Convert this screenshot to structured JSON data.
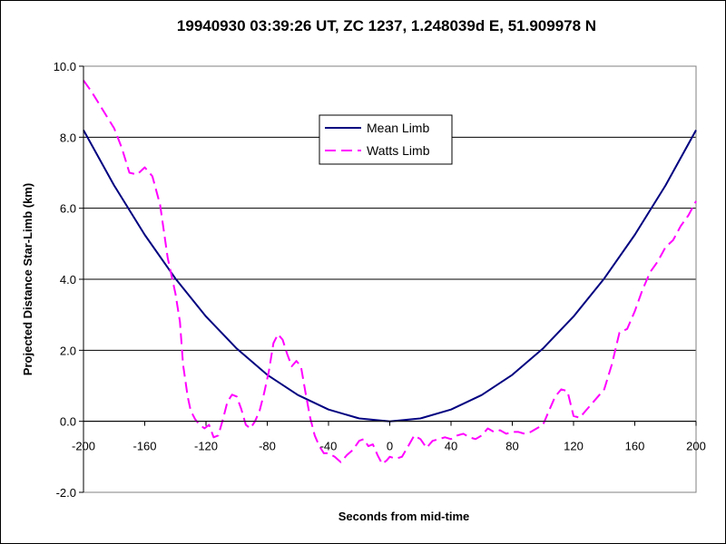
{
  "chart_data": {
    "type": "line",
    "title": "19940930 03:39:26 UT, ZC 1237, 1.248039d E, 51.909978 N",
    "xlabel": "Seconds from mid-time",
    "ylabel": "Projected Distance Star-Limb (km)",
    "xlim": [
      -200,
      200
    ],
    "ylim": [
      -2.0,
      10.0
    ],
    "x_ticks": [
      -200,
      -160,
      -120,
      -80,
      -40,
      0,
      40,
      80,
      120,
      160,
      200
    ],
    "x_tick_labels": [
      "-200",
      "-160",
      "-120",
      "-80",
      "-40",
      "0",
      "40",
      "80",
      "120",
      "160",
      "200"
    ],
    "y_ticks": [
      -2,
      0,
      2,
      4,
      6,
      8,
      10
    ],
    "y_tick_labels": [
      "-2.0",
      "0.0",
      "2.0",
      "4.0",
      "6.0",
      "8.0",
      "10.0"
    ],
    "grid": "horizontal",
    "legend_position": "top-center",
    "series": [
      {
        "name": "Mean Limb",
        "color": "#000080",
        "dash": "solid",
        "x": [
          -200,
          -180,
          -160,
          -140,
          -120,
          -100,
          -80,
          -60,
          -40,
          -20,
          0,
          20,
          40,
          60,
          80,
          100,
          120,
          140,
          160,
          180,
          200
        ],
        "y": [
          8.2,
          6.64,
          5.25,
          4.02,
          2.95,
          2.05,
          1.31,
          0.74,
          0.33,
          0.08,
          0.0,
          0.08,
          0.33,
          0.74,
          1.31,
          2.05,
          2.95,
          4.02,
          5.25,
          6.64,
          8.2
        ]
      },
      {
        "name": "Watts Limb",
        "color": "#ff00ff",
        "dash": "dashed",
        "x": [
          -200,
          -195,
          -190,
          -185,
          -180,
          -175,
          -170,
          -165,
          -160,
          -155,
          -150,
          -145,
          -140,
          -137,
          -135,
          -132,
          -130,
          -127,
          -124,
          -121,
          -118,
          -115,
          -112,
          -109,
          -106,
          -103,
          -100,
          -97,
          -94,
          -91,
          -88,
          -85,
          -82,
          -79,
          -76,
          -73,
          -70,
          -67,
          -64,
          -61,
          -58,
          -55,
          -52,
          -49,
          -46,
          -43,
          -40,
          -36,
          -32,
          -28,
          -24,
          -20,
          -17,
          -14,
          -11,
          -8,
          -5,
          -2,
          0,
          4,
          8,
          12,
          16,
          20,
          24,
          28,
          32,
          36,
          40,
          44,
          48,
          52,
          56,
          60,
          64,
          68,
          72,
          76,
          80,
          84,
          88,
          92,
          96,
          100,
          104,
          108,
          112,
          116,
          120,
          124,
          128,
          132,
          136,
          140,
          145,
          150,
          155,
          160,
          165,
          170,
          175,
          180,
          185,
          190,
          195,
          200
        ],
        "y": [
          9.6,
          9.3,
          8.95,
          8.6,
          8.25,
          7.7,
          7.0,
          6.95,
          7.15,
          6.9,
          6.1,
          4.6,
          3.6,
          2.8,
          1.6,
          0.7,
          0.3,
          0.05,
          -0.1,
          -0.2,
          -0.1,
          -0.45,
          -0.4,
          0.05,
          0.55,
          0.75,
          0.7,
          0.35,
          -0.1,
          -0.2,
          0.0,
          0.3,
          0.8,
          1.4,
          2.2,
          2.45,
          2.3,
          1.9,
          1.55,
          1.7,
          1.55,
          0.8,
          0.1,
          -0.4,
          -0.7,
          -0.9,
          -0.9,
          -1.0,
          -1.15,
          -0.95,
          -0.8,
          -0.55,
          -0.5,
          -0.7,
          -0.65,
          -0.95,
          -1.2,
          -1.1,
          -1.0,
          -1.05,
          -1.0,
          -0.7,
          -0.4,
          -0.5,
          -0.75,
          -0.55,
          -0.5,
          -0.45,
          -0.5,
          -0.4,
          -0.35,
          -0.45,
          -0.5,
          -0.4,
          -0.2,
          -0.3,
          -0.25,
          -0.35,
          -0.3,
          -0.3,
          -0.35,
          -0.3,
          -0.2,
          -0.1,
          0.3,
          0.7,
          0.9,
          0.85,
          0.15,
          0.1,
          0.3,
          0.5,
          0.7,
          0.9,
          1.6,
          2.5,
          2.6,
          3.1,
          3.7,
          4.2,
          4.5,
          4.9,
          5.1,
          5.5,
          5.8,
          6.2
        ]
      }
    ]
  }
}
